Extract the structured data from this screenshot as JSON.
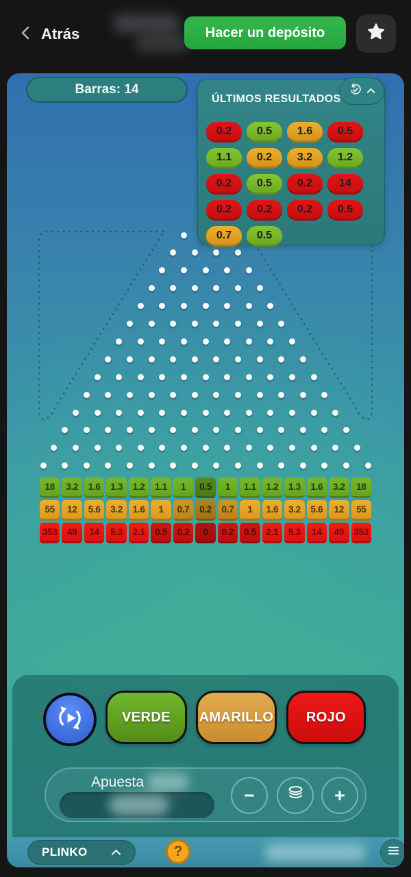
{
  "topbar": {
    "back_label": "Atrás",
    "deposit_label": "Hacer un depósito"
  },
  "game": {
    "bars_label": "Barras: 14",
    "board": {
      "rows": 14,
      "top_row_pegs": 3
    },
    "results_panel": {
      "title": "ÚLTIMOS RESULTADOS",
      "chips": [
        {
          "value": "0.2",
          "color": "red"
        },
        {
          "value": "0.5",
          "color": "green"
        },
        {
          "value": "1.6",
          "color": "orange"
        },
        {
          "value": "0.5",
          "color": "red"
        },
        {
          "value": "1.1",
          "color": "green"
        },
        {
          "value": "0.2",
          "color": "orange"
        },
        {
          "value": "3.2",
          "color": "orange"
        },
        {
          "value": "1.2",
          "color": "green"
        },
        {
          "value": "0.2",
          "color": "red"
        },
        {
          "value": "0.5",
          "color": "green"
        },
        {
          "value": "0.2",
          "color": "red"
        },
        {
          "value": "14",
          "color": "red"
        },
        {
          "value": "0.2",
          "color": "red"
        },
        {
          "value": "0.2",
          "color": "red"
        },
        {
          "value": "0.2",
          "color": "red"
        },
        {
          "value": "0.5",
          "color": "red"
        },
        {
          "value": "0.7",
          "color": "orange"
        },
        {
          "value": "0.5",
          "color": "green"
        }
      ]
    },
    "buckets": [
      {
        "color": "green",
        "values": [
          "18",
          "3.2",
          "1.6",
          "1.3",
          "1.2",
          "1.1",
          "1",
          "0.5",
          "1",
          "1.1",
          "1.2",
          "1.3",
          "1.6",
          "3.2",
          "18"
        ],
        "dim": [],
        "dark": [
          7
        ]
      },
      {
        "color": "orange",
        "values": [
          "55",
          "12",
          "5.6",
          "3.2",
          "1.6",
          "1",
          "0.7",
          "0.2",
          "0.7",
          "1",
          "1.6",
          "3.2",
          "5.6",
          "12",
          "55"
        ],
        "dim": [
          6,
          8
        ],
        "dark": [
          7
        ]
      },
      {
        "color": "red",
        "values": [
          "353",
          "49",
          "14",
          "5.3",
          "2.1",
          "0.5",
          "0.2",
          "0",
          "0.2",
          "0.5",
          "2.1",
          "5.3",
          "14",
          "49",
          "353"
        ],
        "dim": [
          5,
          6,
          8,
          9
        ],
        "dark": [
          7
        ]
      }
    ],
    "controls": {
      "verde_label": "VERDE",
      "amarillo_label": "AMARILLO",
      "rojo_label": "ROJO",
      "minus_glyph": "−",
      "plus_glyph": "+"
    },
    "bet": {
      "label": "Apuesta"
    },
    "footer": {
      "game_name": "PLINKO",
      "help_glyph": "?"
    }
  },
  "colors": {
    "accent_green": "#2bac41",
    "chip_red": "#d31313",
    "chip_green": "#78ba2b",
    "chip_orange": "#e3a322",
    "panel_teal": "#2f8183",
    "auto_blue": "#3c6ee0"
  }
}
